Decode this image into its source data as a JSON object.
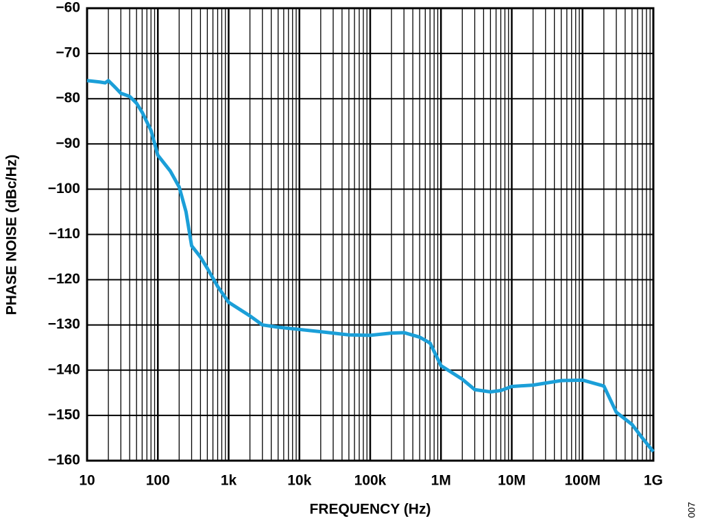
{
  "chart_data": {
    "type": "line",
    "log_x": true,
    "grid": true,
    "xlabel": "FREQUENCY (Hz)",
    "ylabel": "PHASE NOISE (dBc/Hz)",
    "figure_id": "007",
    "color": "#1b9fd8",
    "x": [
      10,
      15,
      18,
      20,
      25,
      30,
      40,
      50,
      60,
      80,
      100,
      150,
      200,
      250,
      300,
      400,
      500,
      700,
      1000,
      2000,
      3000,
      5000,
      10000,
      20000,
      50000,
      100000,
      200000,
      300000,
      500000,
      700000,
      1000000,
      2000000,
      3000000,
      5000000,
      7000000,
      10000000,
      20000000,
      50000000,
      100000000,
      200000000,
      300000000,
      500000000,
      700000000,
      1000000000
    ],
    "values": [
      -76,
      -76.3,
      -76.5,
      -76,
      -77.5,
      -78.8,
      -79.5,
      -81,
      -83,
      -87,
      -92.5,
      -96,
      -99.5,
      -105,
      -112.5,
      -115,
      -117.5,
      -121.5,
      -125,
      -128,
      -130,
      -130.5,
      -131,
      -131.5,
      -132.2,
      -132.3,
      -131.8,
      -131.7,
      -132.7,
      -134,
      -139,
      -142,
      -144.3,
      -144.8,
      -144.5,
      -143.6,
      -143.3,
      -142.3,
      -142.2,
      -143.5,
      -149.3,
      -152,
      -155,
      -158
    ],
    "xlim": [
      10,
      1000000000
    ],
    "xticks": [
      10,
      100,
      {
        "value": 1000,
        "label": "1k"
      },
      {
        "value": 10000,
        "label": "10k"
      },
      {
        "value": 100000,
        "label": "100k"
      },
      {
        "value": 1000000,
        "label": "1M"
      },
      {
        "value": 10000000,
        "label": "10M"
      },
      {
        "value": 100000000,
        "label": "100M"
      },
      {
        "value": 1000000000,
        "label": "1G"
      }
    ],
    "ylim": [
      -160,
      -60
    ],
    "yticks": [
      {
        "value": -60,
        "label": "−60"
      },
      {
        "value": -70,
        "label": "−70"
      },
      {
        "value": -80,
        "label": "−80"
      },
      {
        "value": -90,
        "label": "−90"
      },
      {
        "value": -100,
        "label": "−100"
      },
      {
        "value": -110,
        "label": "−110"
      },
      {
        "value": -120,
        "label": "−120"
      },
      {
        "value": -130,
        "label": "−130"
      },
      {
        "value": -140,
        "label": "−140"
      },
      {
        "value": -150,
        "label": "−150"
      },
      {
        "value": -160,
        "label": "−160"
      }
    ]
  }
}
